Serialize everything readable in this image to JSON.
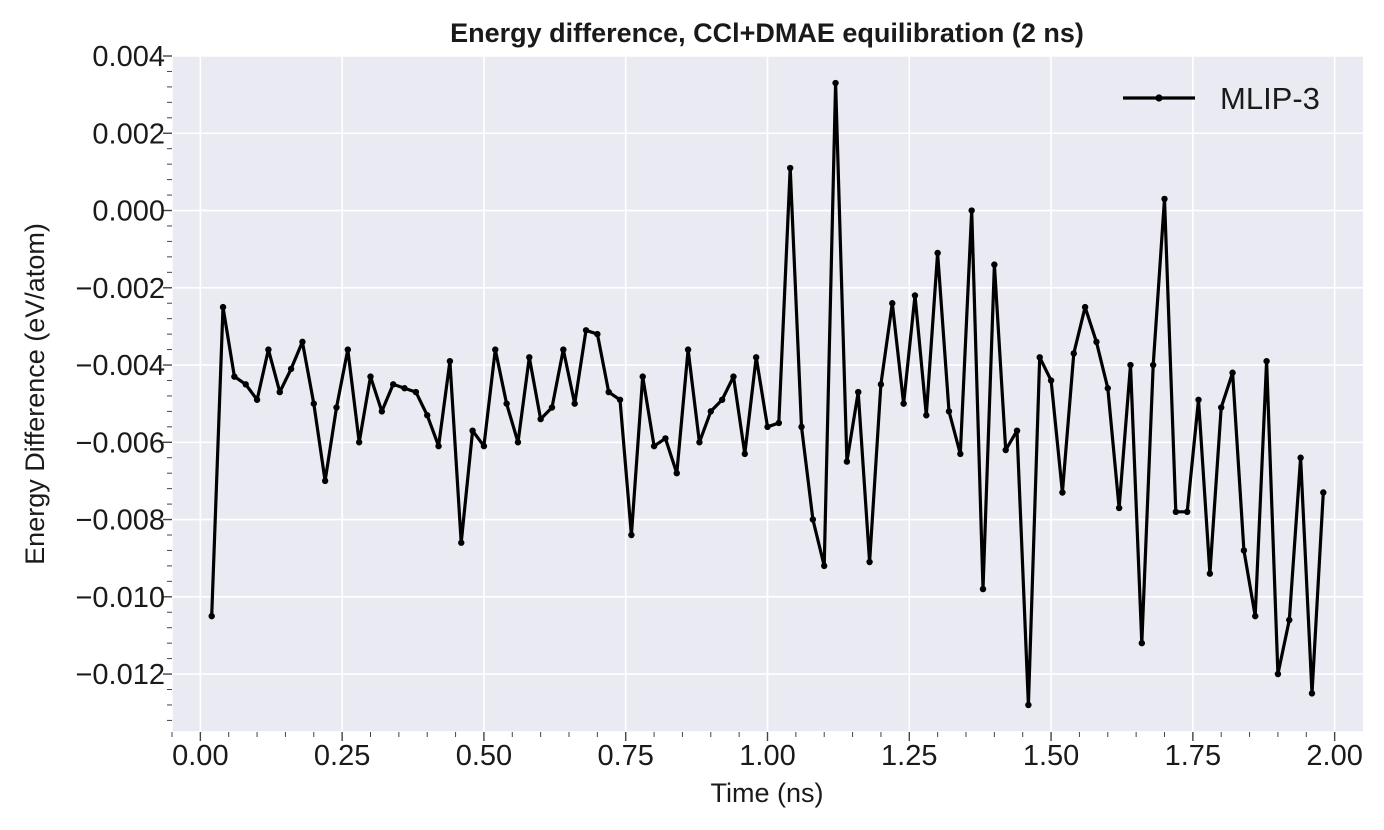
{
  "chart_data": {
    "type": "line",
    "title": "Energy difference, CCl+DMAE equilibration (2 ns)",
    "xlabel": "Time (ns)",
    "ylabel": "Energy Difference (eV/atom)",
    "xlim": [
      -0.05,
      2.05
    ],
    "ylim": [
      -0.0135,
      0.004
    ],
    "xticks": [
      0.0,
      0.25,
      0.5,
      0.75,
      1.0,
      1.25,
      1.5,
      1.75,
      2.0
    ],
    "xtick_labels": [
      "0.00",
      "0.25",
      "0.50",
      "0.75",
      "1.00",
      "1.25",
      "1.50",
      "1.75",
      "2.00"
    ],
    "yticks": [
      0.004,
      0.002,
      0.0,
      -0.002,
      -0.004,
      -0.006,
      -0.008,
      -0.01,
      -0.012
    ],
    "ytick_labels": [
      "0.004",
      "0.002",
      "0.000",
      "−0.002",
      "−0.004",
      "−0.006",
      "−0.008",
      "−0.010",
      "−0.012"
    ],
    "grid": true,
    "legend_position": "top-right",
    "colors": {
      "background": "#eaeaf2",
      "grid": "#ffffff",
      "line": "#000000"
    },
    "series": [
      {
        "name": "MLIP-3",
        "x": [
          0.02,
          0.04,
          0.06,
          0.08,
          0.1,
          0.12,
          0.14,
          0.16,
          0.18,
          0.2,
          0.22,
          0.24,
          0.26,
          0.28,
          0.3,
          0.32,
          0.34,
          0.36,
          0.38,
          0.4,
          0.42,
          0.44,
          0.46,
          0.48,
          0.5,
          0.52,
          0.54,
          0.56,
          0.58,
          0.6,
          0.62,
          0.64,
          0.66,
          0.68,
          0.7,
          0.72,
          0.74,
          0.76,
          0.78,
          0.8,
          0.82,
          0.84,
          0.86,
          0.88,
          0.9,
          0.92,
          0.94,
          0.96,
          0.98,
          1.0,
          1.02,
          1.04,
          1.06,
          1.08,
          1.1,
          1.12,
          1.14,
          1.16,
          1.18,
          1.2,
          1.22,
          1.24,
          1.26,
          1.28,
          1.3,
          1.32,
          1.34,
          1.36,
          1.38,
          1.4,
          1.42,
          1.44,
          1.46,
          1.48,
          1.5,
          1.52,
          1.54,
          1.56,
          1.58,
          1.6,
          1.62,
          1.64,
          1.66,
          1.68,
          1.7,
          1.72,
          1.74,
          1.76,
          1.78,
          1.8,
          1.82,
          1.84,
          1.86,
          1.88,
          1.9,
          1.92,
          1.94,
          1.96,
          1.98
        ],
        "y": [
          -0.0105,
          -0.0025,
          -0.0043,
          -0.0045,
          -0.0049,
          -0.0036,
          -0.0047,
          -0.0041,
          -0.0034,
          -0.005,
          -0.007,
          -0.0051,
          -0.0036,
          -0.006,
          -0.0043,
          -0.0052,
          -0.0045,
          -0.0046,
          -0.0047,
          -0.0053,
          -0.0061,
          -0.0039,
          -0.0086,
          -0.0057,
          -0.0061,
          -0.0036,
          -0.005,
          -0.006,
          -0.0038,
          -0.0054,
          -0.0051,
          -0.0036,
          -0.005,
          -0.0031,
          -0.0032,
          -0.0047,
          -0.0049,
          -0.0084,
          -0.0043,
          -0.0061,
          -0.0059,
          -0.0068,
          -0.0036,
          -0.006,
          -0.0052,
          -0.0049,
          -0.0043,
          -0.0063,
          -0.0038,
          -0.0056,
          -0.0055,
          0.0011,
          -0.0056,
          -0.008,
          -0.0092,
          0.0033,
          -0.0065,
          -0.0047,
          -0.0091,
          -0.0045,
          -0.0024,
          -0.005,
          -0.0022,
          -0.0053,
          -0.0011,
          -0.0052,
          -0.0063,
          0.0,
          -0.0098,
          -0.0014,
          -0.0062,
          -0.0057,
          -0.0128,
          -0.0038,
          -0.0044,
          -0.0073,
          -0.0037,
          -0.0025,
          -0.0034,
          -0.0046,
          -0.0077,
          -0.004,
          -0.0112,
          -0.004,
          0.0003,
          -0.0078,
          -0.0078,
          -0.0049,
          -0.0094,
          -0.0051,
          -0.0042,
          -0.0088,
          -0.0105,
          -0.0039,
          -0.012,
          -0.0106,
          -0.0064,
          -0.0125,
          -0.0073
        ]
      }
    ]
  }
}
